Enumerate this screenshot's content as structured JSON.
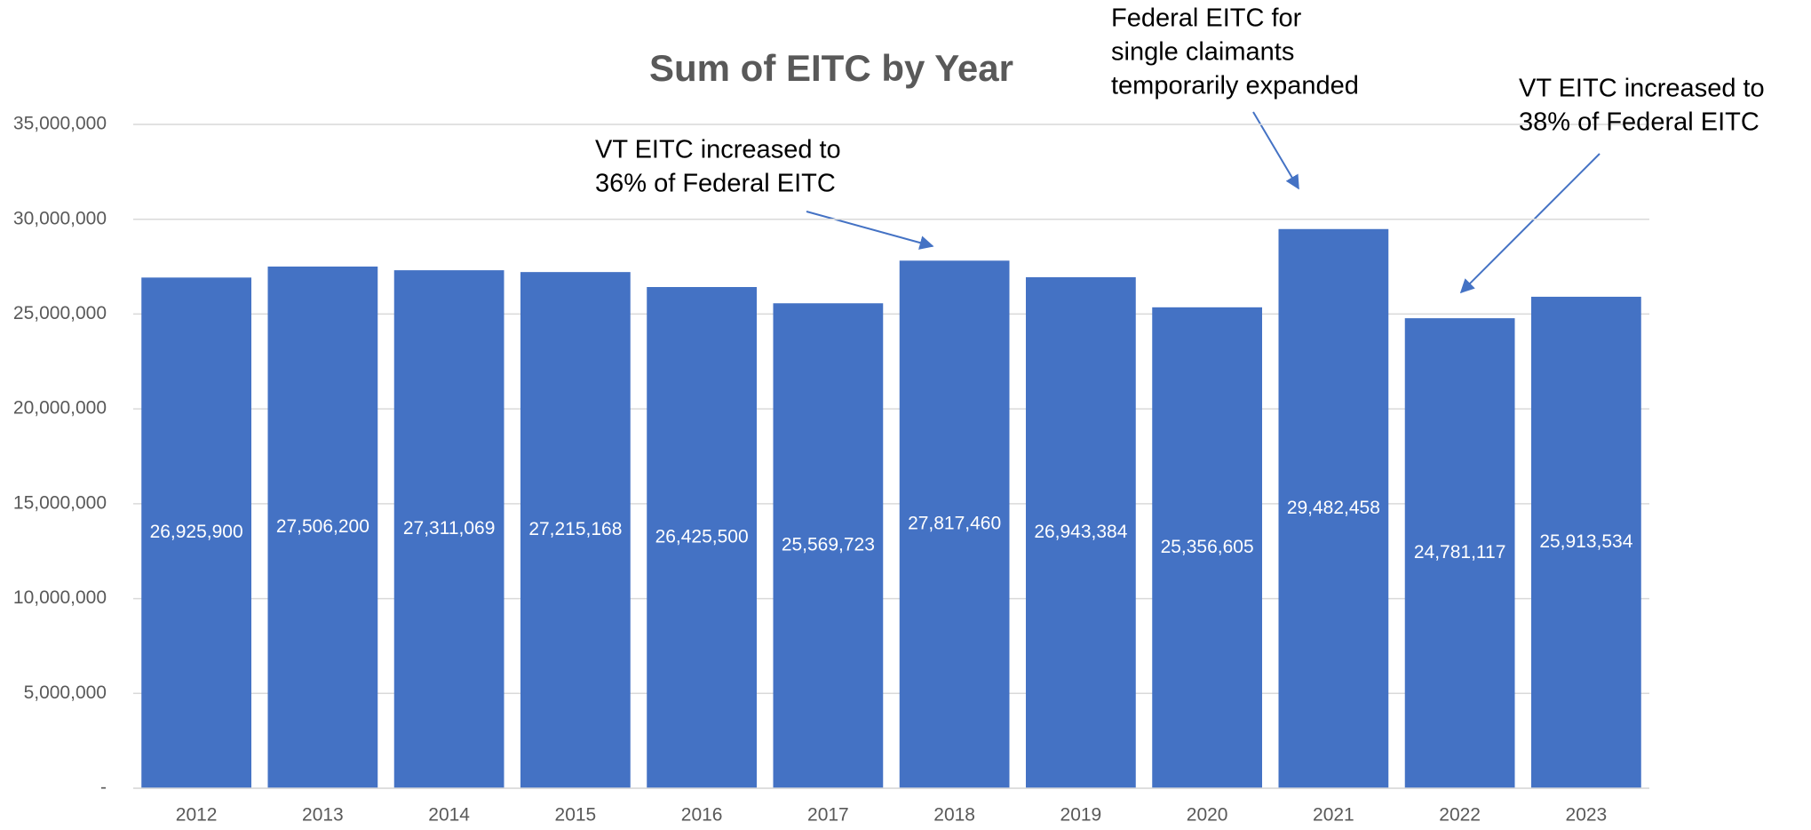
{
  "chart_data": {
    "type": "bar",
    "title": "Sum of EITC by Year",
    "categories": [
      "2012",
      "2013",
      "2014",
      "2015",
      "2016",
      "2017",
      "2018",
      "2019",
      "2020",
      "2021",
      "2022",
      "2023"
    ],
    "values": [
      26925900,
      27506200,
      27311069,
      27215168,
      26425500,
      25569723,
      27817460,
      26943384,
      25356605,
      29482458,
      24781117,
      25913534
    ],
    "value_labels": [
      "26,925,900",
      "27,506,200",
      "27,311,069",
      "27,215,168",
      "26,425,500",
      "25,569,723",
      "27,817,460",
      "26,943,384",
      "25,356,605",
      "29,482,458",
      "24,781,117",
      "25,913,534"
    ],
    "color": "#4472c4",
    "ylim": [
      0,
      35000000
    ],
    "yticks": [
      {
        "value": 0,
        "label": "-"
      },
      {
        "value": 5000000,
        "label": "5,000,000"
      },
      {
        "value": 10000000,
        "label": "10,000,000"
      },
      {
        "value": 15000000,
        "label": "15,000,000"
      },
      {
        "value": 20000000,
        "label": "20,000,000"
      },
      {
        "value": 25000000,
        "label": "25,000,000"
      },
      {
        "value": 30000000,
        "label": "30,000,000"
      },
      {
        "value": 35000000,
        "label": "35,000,000"
      }
    ],
    "grid": true,
    "annotations": [
      {
        "lines": [
          "VT EITC increased to",
          "36% of Federal EITC"
        ]
      },
      {
        "lines": [
          "Federal EITC for",
          "single claimants",
          "temporarily expanded"
        ]
      },
      {
        "lines": [
          "VT EITC increased to",
          "38% of Federal EITC"
        ]
      }
    ]
  }
}
